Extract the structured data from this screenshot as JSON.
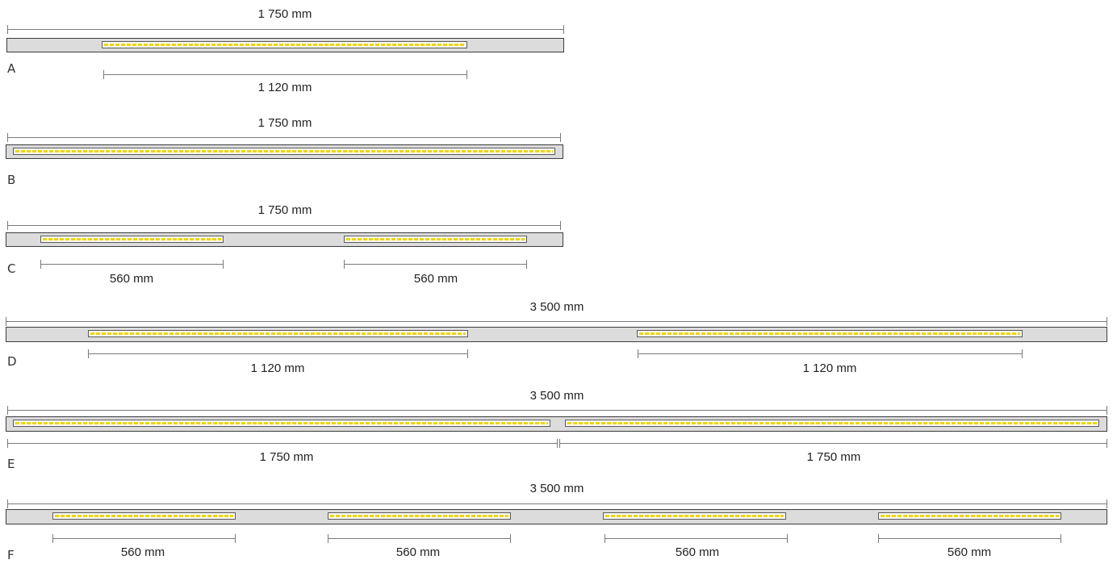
{
  "rows": [
    {
      "letter": "A",
      "total_label": "1 750 mm",
      "segments": [
        "1 120 mm"
      ]
    },
    {
      "letter": "B",
      "total_label": "1 750 mm",
      "segments": []
    },
    {
      "letter": "C",
      "total_label": "1 750 mm",
      "segments": [
        "560 mm",
        "560 mm"
      ]
    },
    {
      "letter": "D",
      "total_label": "3 500 mm",
      "segments": [
        "1 120 mm",
        "1 120 mm"
      ]
    },
    {
      "letter": "E",
      "total_label": "3 500 mm",
      "segments": [
        "1 750 mm",
        "1 750 mm"
      ]
    },
    {
      "letter": "F",
      "total_label": "3 500 mm",
      "segments": [
        "560 mm",
        "560 mm",
        "560 mm",
        "560 mm"
      ]
    }
  ],
  "colors": {
    "profile": "#dcdcdc",
    "led": "#f2d40a",
    "dimension_line": "#7a7a7a",
    "outline": "#3c3c3c"
  }
}
